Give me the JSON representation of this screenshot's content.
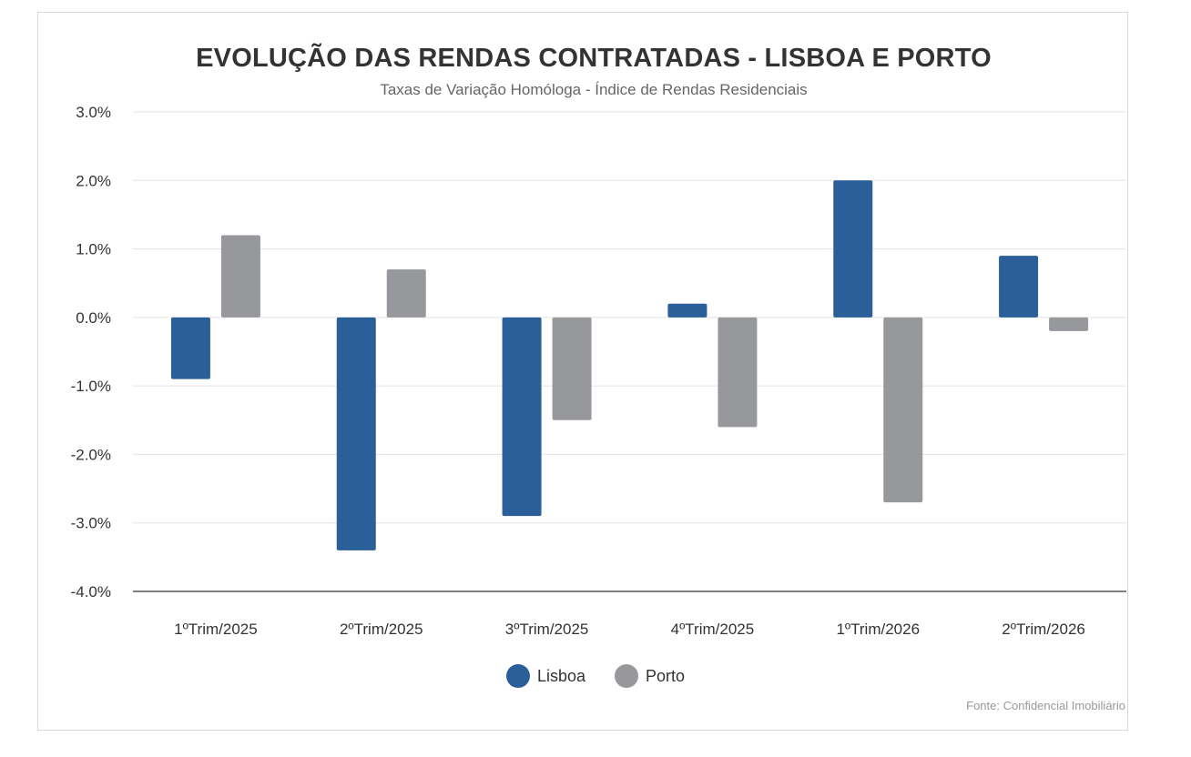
{
  "title": "EVOLUÇÃO DAS RENDAS CONTRATADAS - LISBOA E PORTO",
  "subtitle": "Taxas de Variação Homóloga - Índice de Rendas Residenciais",
  "source": "Fonte: Confidencial Imobiliário",
  "colors": {
    "lisboa": "#2a5f99",
    "porto": "#97989c"
  },
  "chart_data": {
    "type": "bar",
    "categories": [
      "1ºTrim/2025",
      "2ºTrim/2025",
      "3ºTrim/2025",
      "4ºTrim/2025",
      "1ºTrim/2026",
      "2ºTrim/2026"
    ],
    "series": [
      {
        "name": "Lisboa",
        "values": [
          -0.9,
          -3.4,
          -2.9,
          0.2,
          2.0,
          0.9
        ]
      },
      {
        "name": "Porto",
        "values": [
          1.2,
          0.7,
          -1.5,
          -1.6,
          -2.7,
          -0.2
        ]
      }
    ],
    "ylim": [
      -4.0,
      3.0
    ],
    "yticks": [
      "3.0%",
      "2.0%",
      "1.0%",
      "0.0%",
      "-1.0%",
      "-2.0%",
      "-3.0%",
      "-4.0%"
    ],
    "ytick_values": [
      3,
      2,
      1,
      0,
      -1,
      -2,
      -3,
      -4
    ],
    "grid": true,
    "legend_position": "bottom"
  }
}
